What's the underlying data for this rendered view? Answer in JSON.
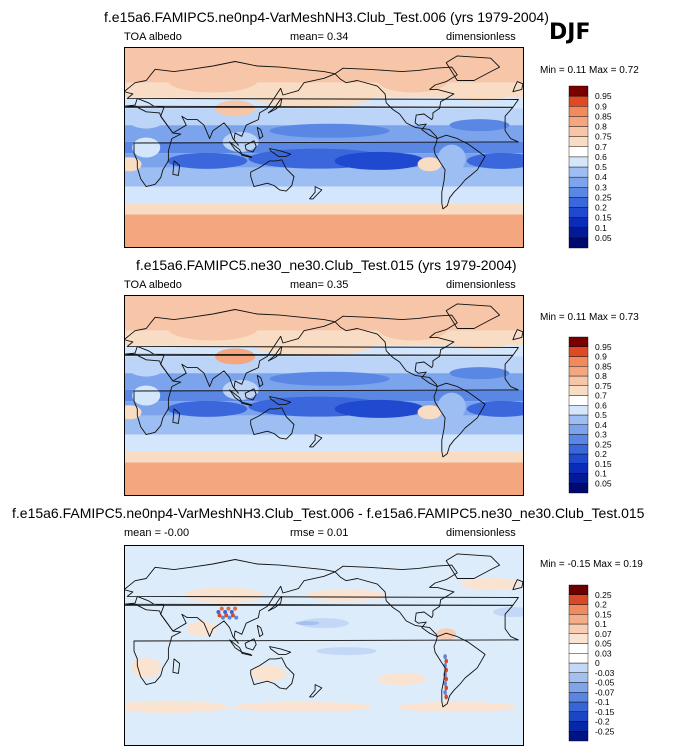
{
  "season": "DJF",
  "colors": {
    "pos": [
      "#f9dcc4",
      "#f7c6a8",
      "#f4a77f",
      "#f18a5c",
      "#ec6a3d",
      "#df4a26",
      "#c82c17",
      "#a11209",
      "#7a0000"
    ],
    "neg": [
      "#d4e6fb",
      "#bbd4f7",
      "#9dbef2",
      "#7ca4ec",
      "#5b87e4",
      "#3a68dc",
      "#1f4ad0",
      "#0b2cb8",
      "#031a96",
      "#000a6e"
    ],
    "diff_pos": [
      "#fbe3d2",
      "#f9cdb2",
      "#f4ad87",
      "#ef8b60",
      "#e86a40",
      "#d84a27",
      "#bb2c14",
      "#930d05",
      "#6e0000"
    ],
    "diff_neg": [
      "#ddecfb",
      "#c2d8f6",
      "#a3c0ef",
      "#80a4e8",
      "#5a86df",
      "#3866d5",
      "#1a46c6",
      "#0628a8",
      "#001382"
    ],
    "land": "#111111"
  },
  "chart_data": [
    {
      "type": "heatmap",
      "title": "f.e15a6.FAMIPC5.ne0np4-VarMeshNH3.Club_Test.006 (yrs 1979-2004)",
      "left_label": "TOA albedo",
      "center_label": "mean=  0.34",
      "right_label": "dimensionless",
      "minmax": "Min =  0.11 Max =  0.72",
      "levels": [
        "0.05",
        "0.1",
        "0.15",
        "0.2",
        "0.25",
        "0.3",
        "0.4",
        "0.5",
        "0.6",
        "0.7",
        "0.75",
        "0.8",
        "0.85",
        "0.9",
        "0.95"
      ],
      "mean": 0.34,
      "min": 0.11,
      "max": 0.72
    },
    {
      "type": "heatmap",
      "title": "f.e15a6.FAMIPC5.ne30_ne30.Club_Test.015 (yrs 1979-2004)",
      "left_label": "TOA albedo",
      "center_label": "mean=  0.35",
      "right_label": "dimensionless",
      "minmax": "Min =  0.11 Max =  0.73",
      "levels": [
        "0.05",
        "0.1",
        "0.15",
        "0.2",
        "0.25",
        "0.3",
        "0.4",
        "0.5",
        "0.6",
        "0.7",
        "0.75",
        "0.8",
        "0.85",
        "0.9",
        "0.95"
      ],
      "mean": 0.35,
      "min": 0.11,
      "max": 0.73
    },
    {
      "type": "heatmap",
      "title": "f.e15a6.FAMIPC5.ne0np4-VarMeshNH3.Club_Test.006 - f.e15a6.FAMIPC5.ne30_ne30.Club_Test.015",
      "left_label": "mean = -0.00",
      "center_label": "rmse =  0.01",
      "right_label": "dimensionless",
      "minmax": "Min = -0.15 Max =  0.19",
      "levels": [
        "-0.25",
        "-0.2",
        "-0.15",
        "-0.1",
        "-0.07",
        "-0.05",
        "-0.03",
        "0",
        "0.03",
        "0.05",
        "0.07",
        "0.1",
        "0.15",
        "0.2",
        "0.25"
      ],
      "mean": -0.0,
      "rmse": 0.01,
      "min": -0.15,
      "max": 0.19
    }
  ]
}
